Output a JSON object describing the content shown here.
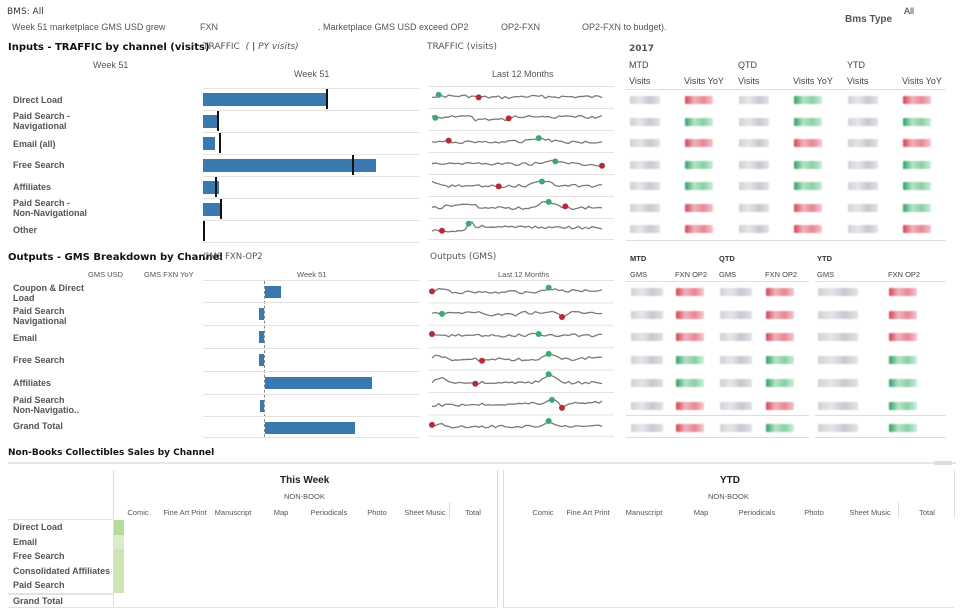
{
  "header": {
    "filter_label": "BMS: All",
    "summary_parts": [
      "Week 51 marketplace GMS USD grew",
      "FXN",
      ". Marketplace GMS USD exceed OP2",
      "OP2-FXN",
      "OP2-FXN to budget)."
    ],
    "bms_type_label": "Bms Type",
    "bms_type_value": "All"
  },
  "traffic": {
    "section_title": "Inputs - TRAFFIC by channel (visits)",
    "week_label_left": "Week 51",
    "bar_title": "TRAFFIC",
    "bar_title_paren_open": "(",
    "bar_title_sep": "|",
    "bar_title_py": "PY visits)",
    "bar_week_label": "Week 51",
    "spark_title": "TRAFFIC (visits)",
    "spark_period": "Last 12 Months",
    "channels": [
      "Direct Load",
      "Paid Search - Navigational",
      "Email (all)",
      "Free Search",
      "Affiliates",
      "Paid Search - Non-Navigational",
      "Other"
    ],
    "bar_values": [
      0.72,
      0.08,
      0.07,
      1.0,
      0.09,
      0.1,
      0.0
    ],
    "py_values": [
      0.71,
      0.08,
      0.09,
      0.86,
      0.07,
      0.1,
      0.0
    ],
    "table": {
      "year": "2017",
      "groups": [
        "MTD",
        "QTD",
        "YTD"
      ],
      "columns": [
        "Visits",
        "Visits YoY",
        "Visits",
        "Visits YoY",
        "Visits",
        "Visits YoY"
      ],
      "rows": [
        [
          "g",
          "r",
          "g",
          "gr",
          "g",
          "r"
        ],
        [
          "g",
          "gr",
          "g",
          "gr",
          "g",
          "gr"
        ],
        [
          "g",
          "r",
          "g",
          "r",
          "g",
          "r"
        ],
        [
          "g",
          "gr",
          "g",
          "gr",
          "g",
          "gr"
        ],
        [
          "g",
          "gr",
          "g",
          "gr",
          "g",
          "gr"
        ],
        [
          "g",
          "r",
          "g",
          "r",
          "g",
          "gr"
        ],
        [
          "g",
          "r",
          "g",
          "r",
          "g",
          "r"
        ]
      ]
    }
  },
  "gms": {
    "section_title": "Outputs - GMS Breakdown by Channel",
    "col_gms_usd": "GMS USD",
    "col_gms_fxn_yoy": "GMS FXN YoY",
    "bar_title": "GMS FXN-OP2",
    "bar_week_label": "Week 51",
    "spark_title": "Outputs (GMS)",
    "spark_period": "Last 12 Months",
    "channels": [
      "Coupon & Direct Load",
      "Paid Search Navigational",
      "Email",
      "Free Search",
      "Affiliates",
      "Paid Search Non-Navigatio..",
      "Grand Total"
    ],
    "bar_values": [
      0.15,
      -0.05,
      -0.05,
      -0.05,
      1.0,
      -0.04,
      0.84
    ],
    "table": {
      "groups": [
        "MTD",
        "QTD",
        "YTD"
      ],
      "columns": [
        "GMS",
        "FXN OP2",
        "GMS",
        "FXN OP2",
        "GMS",
        "FXN OP2"
      ],
      "rows": [
        [
          "g",
          "r",
          "g",
          "r",
          "g",
          "r"
        ],
        [
          "g",
          "r",
          "g",
          "r",
          "g",
          "r"
        ],
        [
          "g",
          "r",
          "g",
          "r",
          "g",
          "r"
        ],
        [
          "g",
          "gr",
          "g",
          "gr",
          "g",
          "gr"
        ],
        [
          "g",
          "gr",
          "g",
          "gr",
          "g",
          "gr"
        ],
        [
          "g",
          "r",
          "g",
          "r",
          "g",
          "gr"
        ],
        [
          "g",
          "r",
          "g",
          "gr",
          "g",
          "gr"
        ]
      ]
    }
  },
  "non_books": {
    "section_title": "Non-Books Collectibles Sales by Channel",
    "this_week_label": "This Week",
    "ytd_label": "YTD",
    "category_label": "NON-BOOK",
    "columns": [
      "Comic",
      "Fine Art Print",
      "Manuscript",
      "Map",
      "Periodicals",
      "Photo",
      "Sheet Music",
      "Total"
    ],
    "rows": [
      "Direct Load",
      "Email",
      "Free Search",
      "Consolidated Affiliates",
      "Paid Search",
      "Grand Total"
    ],
    "heat_colors": [
      "#b7d99a",
      "#dcecc8",
      "#cde4b4",
      "#cde4b4",
      "#cde4b4"
    ]
  },
  "colors": {
    "bar": "#3a78b0",
    "spark_line": "#7a7a7a",
    "spark_max": "#3aaa6e",
    "spark_min": "#b8293a"
  }
}
